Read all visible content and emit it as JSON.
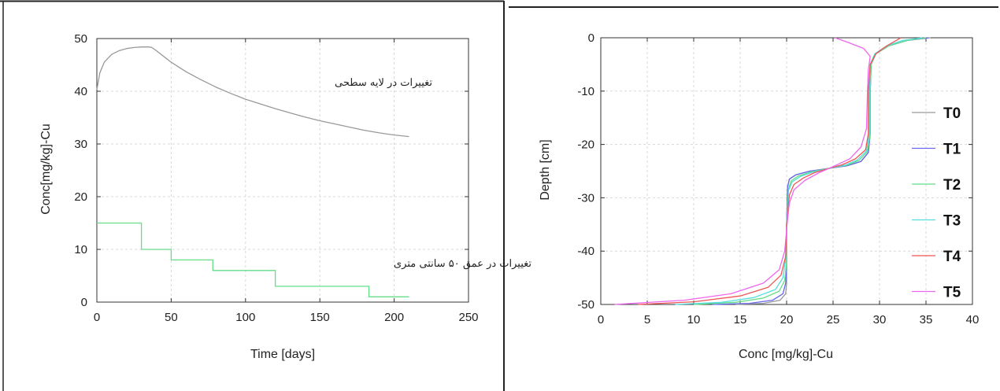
{
  "chart_data": [
    {
      "type": "line",
      "title": "",
      "xlabel": "Time [days]",
      "ylabel": "Conc[mg/kg]-Cu",
      "xlim": [
        0,
        250
      ],
      "ylim": [
        0,
        50
      ],
      "xticks": [
        "0",
        "50",
        "100",
        "150",
        "200",
        "250"
      ],
      "yticks": [
        "0",
        "10",
        "20",
        "30",
        "40",
        "50"
      ],
      "grid": true,
      "series": [
        {
          "color": "#999999",
          "annotation": "تغییرات در لایه سطحی",
          "x": [
            0,
            2,
            5,
            10,
            15,
            20,
            25,
            30,
            35,
            37,
            40,
            45,
            50,
            60,
            70,
            80,
            90,
            100,
            110,
            120,
            130,
            140,
            150,
            160,
            170,
            180,
            190,
            200,
            210
          ],
          "y": [
            40.3,
            43.5,
            45.5,
            47.0,
            47.7,
            48.1,
            48.3,
            48.4,
            48.4,
            48.3,
            47.7,
            46.6,
            45.5,
            43.7,
            42.2,
            40.8,
            39.6,
            38.5,
            37.6,
            36.7,
            35.9,
            35.1,
            34.4,
            33.8,
            33.2,
            32.6,
            32.1,
            31.7,
            31.4
          ]
        },
        {
          "color": "#66dd88",
          "annotation": "تغییرات در عمق ۵۰ سانتی متری",
          "x": [
            0,
            30,
            30,
            50,
            50,
            78,
            78,
            120,
            120,
            183,
            183,
            210
          ],
          "y": [
            15,
            15,
            10,
            10,
            8,
            8,
            6,
            6,
            3,
            3,
            1,
            1
          ]
        }
      ]
    },
    {
      "type": "line",
      "title": "",
      "xlabel": "Conc [mg/kg]-Cu",
      "ylabel": "Depth [cm]",
      "xlim": [
        0,
        40
      ],
      "ylim": [
        -50,
        0
      ],
      "xticks": [
        "0",
        "5",
        "10",
        "15",
        "20",
        "25",
        "30",
        "35",
        "40"
      ],
      "yticks": [
        "0",
        "-10",
        "-20",
        "-30",
        "-40",
        "-50"
      ],
      "grid": true,
      "legend": "right",
      "series": [
        {
          "name": "T0",
          "color": "#999999",
          "x": [
            35.5,
            33,
            31,
            29.6,
            29.1,
            29.0,
            29.0,
            28.8,
            28.0,
            26.5,
            24.5,
            22.5,
            21.0,
            20.3,
            20.1,
            20.0,
            20.0,
            20.0,
            19.9,
            19.3,
            17.5,
            14.5
          ],
          "y": [
            0,
            -0.5,
            -1.5,
            -3,
            -5,
            -10,
            -18,
            -21.5,
            -23.2,
            -24.0,
            -24.5,
            -25.0,
            -25.7,
            -26.5,
            -28,
            -35,
            -42,
            -46,
            -48,
            -49.2,
            -49.8,
            -50
          ]
        },
        {
          "name": "T1",
          "color": "#6666ee",
          "x": [
            35.3,
            33,
            31,
            29.6,
            29.1,
            29.0,
            29.0,
            28.8,
            28.0,
            26.5,
            24.5,
            22.5,
            21.0,
            20.3,
            20.1,
            20.0,
            20.0,
            19.9,
            19.6,
            18.5,
            16,
            12
          ],
          "y": [
            0,
            -0.5,
            -1.5,
            -3,
            -5,
            -10,
            -18,
            -21.5,
            -23.2,
            -24.0,
            -24.5,
            -25.0,
            -25.7,
            -26.5,
            -28,
            -35,
            -42,
            -46,
            -48,
            -49.2,
            -49.8,
            -50
          ]
        },
        {
          "name": "T2",
          "color": "#66dd88",
          "x": [
            35.0,
            33,
            31,
            29.6,
            29.1,
            29.0,
            29.0,
            28.7,
            27.8,
            26.5,
            24.5,
            22.7,
            21.3,
            20.5,
            20.2,
            20.0,
            20.0,
            19.8,
            19.2,
            17.5,
            14.5,
            10
          ],
          "y": [
            0,
            -0.5,
            -1.5,
            -3,
            -5,
            -10,
            -18,
            -21.3,
            -23.0,
            -23.9,
            -24.5,
            -25.1,
            -25.9,
            -26.8,
            -28.3,
            -35,
            -42,
            -45.5,
            -47.5,
            -48.8,
            -49.6,
            -50
          ]
        },
        {
          "name": "T3",
          "color": "#55dddd",
          "x": [
            34.6,
            32.5,
            30.8,
            29.5,
            29.0,
            28.9,
            28.9,
            28.6,
            27.6,
            26.3,
            24.5,
            22.8,
            21.5,
            20.6,
            20.2,
            20.0,
            19.9,
            19.6,
            18.8,
            16.5,
            13,
            8
          ],
          "y": [
            0,
            -0.5,
            -1.5,
            -3,
            -5,
            -10,
            -18,
            -21.2,
            -22.9,
            -23.9,
            -24.5,
            -25.2,
            -26.0,
            -27.0,
            -28.6,
            -35,
            -41.5,
            -45,
            -47.2,
            -48.7,
            -49.6,
            -50
          ]
        },
        {
          "name": "T4",
          "color": "#ee5555",
          "x": [
            32.3,
            31.8,
            30.8,
            29.6,
            29.0,
            28.8,
            28.8,
            28.5,
            27.4,
            26.0,
            24.5,
            23.0,
            21.8,
            20.8,
            20.3,
            20.0,
            19.9,
            19.4,
            18.0,
            15,
            10,
            4
          ],
          "y": [
            0,
            -0.5,
            -1.5,
            -3,
            -5,
            -10,
            -18,
            -21.0,
            -22.7,
            -23.8,
            -24.5,
            -25.3,
            -26.3,
            -27.5,
            -29.5,
            -35,
            -41,
            -44.5,
            -46.8,
            -48.4,
            -49.5,
            -50
          ]
        },
        {
          "name": "T5",
          "color": "#ee66ee",
          "x": [
            25.2,
            26.5,
            28.3,
            29.0,
            28.8,
            28.7,
            28.6,
            28.0,
            26.8,
            25.2,
            23.5,
            22.0,
            20.8,
            20.3,
            20.1,
            19.8,
            19.2,
            17.5,
            14.0,
            9.0,
            1.5
          ],
          "y": [
            0,
            -0.8,
            -2,
            -3.5,
            -6,
            -10,
            -17,
            -20.5,
            -22.7,
            -24.0,
            -25.3,
            -26.7,
            -28.5,
            -31.0,
            -34,
            -40,
            -43.5,
            -46,
            -48,
            -49.2,
            -50
          ]
        }
      ]
    }
  ]
}
